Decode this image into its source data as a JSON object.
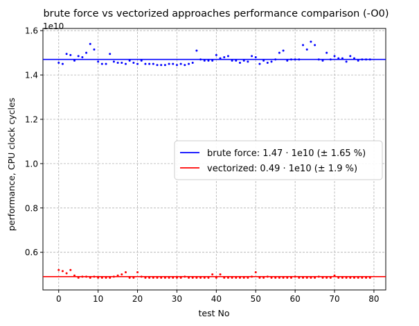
{
  "chart_data": {
    "type": "scatter",
    "title": "brute force vs vectorized approaches performance comparison (-O0)",
    "xlabel": "test No",
    "ylabel": "performance, CPU clock cycles",
    "offset_text": "1e10",
    "xlim": [
      -4,
      83
    ],
    "ylim": [
      0.43,
      1.61
    ],
    "xticks": [
      0,
      10,
      20,
      30,
      40,
      50,
      60,
      70,
      80
    ],
    "xtick_labels": [
      "0",
      "10",
      "20",
      "30",
      "40",
      "50",
      "60",
      "70",
      "80"
    ],
    "yticks": [
      0.6,
      0.8,
      1.0,
      1.2,
      1.4,
      1.6
    ],
    "ytick_labels": [
      "0.6",
      "0.8",
      "1.0",
      "1.2",
      "1.4",
      "1.6"
    ],
    "grid": true,
    "legend_position": "center-right",
    "series": [
      {
        "name": "brute force: 1.47 · 1e10 (± 1.65 %)",
        "color": "#0000ff",
        "mean": 1.47,
        "x": [
          0,
          1,
          2,
          3,
          4,
          5,
          6,
          7,
          8,
          9,
          10,
          11,
          12,
          13,
          14,
          15,
          16,
          17,
          18,
          19,
          20,
          21,
          22,
          23,
          24,
          25,
          26,
          27,
          28,
          29,
          30,
          31,
          32,
          33,
          34,
          35,
          36,
          37,
          38,
          39,
          40,
          41,
          42,
          43,
          44,
          45,
          46,
          47,
          48,
          49,
          50,
          51,
          52,
          53,
          54,
          55,
          56,
          57,
          58,
          59,
          60,
          61,
          62,
          63,
          64,
          65,
          66,
          67,
          68,
          69,
          70,
          71,
          72,
          73,
          74,
          75,
          76,
          77,
          78,
          79
        ],
        "values": [
          1.455,
          1.45,
          1.495,
          1.49,
          1.465,
          1.485,
          1.48,
          1.5,
          1.54,
          1.515,
          1.46,
          1.45,
          1.45,
          1.495,
          1.46,
          1.455,
          1.455,
          1.45,
          1.465,
          1.455,
          1.45,
          1.465,
          1.45,
          1.45,
          1.45,
          1.445,
          1.445,
          1.445,
          1.45,
          1.45,
          1.445,
          1.45,
          1.445,
          1.45,
          1.455,
          1.51,
          1.47,
          1.465,
          1.465,
          1.465,
          1.49,
          1.475,
          1.48,
          1.485,
          1.465,
          1.465,
          1.455,
          1.465,
          1.46,
          1.485,
          1.48,
          1.45,
          1.465,
          1.455,
          1.46,
          1.47,
          1.5,
          1.51,
          1.465,
          1.47,
          1.47,
          1.47,
          1.535,
          1.515,
          1.55,
          1.535,
          1.47,
          1.465,
          1.5,
          1.47,
          1.485,
          1.475,
          1.475,
          1.46,
          1.485,
          1.475,
          1.465,
          1.47,
          1.47,
          1.47
        ]
      },
      {
        "name": "vectorized: 0.49 · 1e10 (± 1.9 %)",
        "color": "#ff0000",
        "mean": 0.49,
        "x": [
          0,
          1,
          2,
          3,
          4,
          5,
          6,
          7,
          8,
          9,
          10,
          11,
          12,
          13,
          14,
          15,
          16,
          17,
          18,
          19,
          20,
          21,
          22,
          23,
          24,
          25,
          26,
          27,
          28,
          29,
          30,
          31,
          32,
          33,
          34,
          35,
          36,
          37,
          38,
          39,
          40,
          41,
          42,
          43,
          44,
          45,
          46,
          47,
          48,
          49,
          50,
          51,
          52,
          53,
          54,
          55,
          56,
          57,
          58,
          59,
          60,
          61,
          62,
          63,
          64,
          65,
          66,
          67,
          68,
          69,
          70,
          71,
          72,
          73,
          74,
          75,
          76,
          77,
          78,
          79
        ],
        "values": [
          0.52,
          0.515,
          0.505,
          0.52,
          0.495,
          0.485,
          0.49,
          0.49,
          0.485,
          0.49,
          0.485,
          0.485,
          0.485,
          0.485,
          0.49,
          0.495,
          0.5,
          0.51,
          0.485,
          0.485,
          0.51,
          0.49,
          0.485,
          0.485,
          0.485,
          0.485,
          0.485,
          0.485,
          0.485,
          0.485,
          0.485,
          0.485,
          0.49,
          0.485,
          0.485,
          0.485,
          0.485,
          0.485,
          0.485,
          0.5,
          0.485,
          0.5,
          0.485,
          0.485,
          0.485,
          0.485,
          0.485,
          0.485,
          0.485,
          0.49,
          0.51,
          0.485,
          0.485,
          0.49,
          0.485,
          0.485,
          0.485,
          0.485,
          0.485,
          0.485,
          0.49,
          0.485,
          0.485,
          0.485,
          0.485,
          0.485,
          0.49,
          0.485,
          0.485,
          0.485,
          0.495,
          0.485,
          0.485,
          0.485,
          0.485,
          0.485,
          0.485,
          0.485,
          0.485,
          0.485
        ]
      }
    ]
  }
}
